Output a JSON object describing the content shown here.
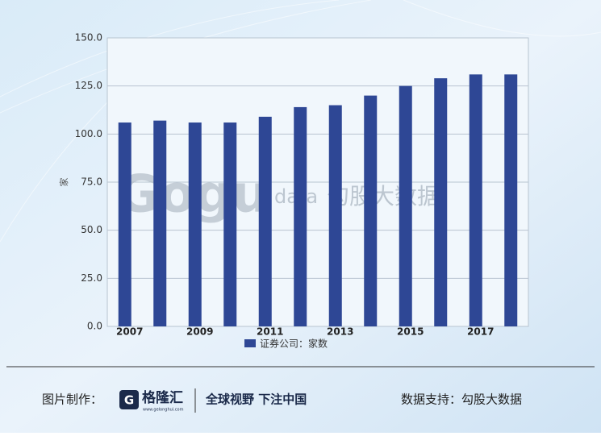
{
  "chart_data": {
    "type": "bar",
    "y_label": "家",
    "categories": [
      "2007",
      null,
      "2009",
      null,
      "2011",
      null,
      "2013",
      null,
      "2015",
      null,
      "2017",
      null
    ],
    "series": [
      {
        "name": "证券公司：家数",
        "color": "#2e4795",
        "values": [
          106,
          107,
          106,
          106,
          109,
          114,
          115,
          120,
          125,
          129,
          131,
          131
        ]
      }
    ],
    "ylim": [
      0,
      150
    ],
    "yticks": [
      {
        "value": 0,
        "label": "0.0"
      },
      {
        "value": 25,
        "label": "25.0"
      },
      {
        "value": 50,
        "label": "50.0"
      },
      {
        "value": 75,
        "label": "75.0"
      },
      {
        "value": 100,
        "label": "100.0"
      },
      {
        "value": 125,
        "label": "125.0"
      },
      {
        "value": 150,
        "label": "150.0"
      }
    ],
    "grid": true
  },
  "watermark": {
    "data": "data",
    "name": "勾股大数据"
  },
  "footer": {
    "made_by": "图片制作：",
    "logo": "格隆汇",
    "url": "www.gelonghui.com",
    "slogan": "全球视野 下注中国",
    "source": "数据支持：勾股大数据"
  }
}
